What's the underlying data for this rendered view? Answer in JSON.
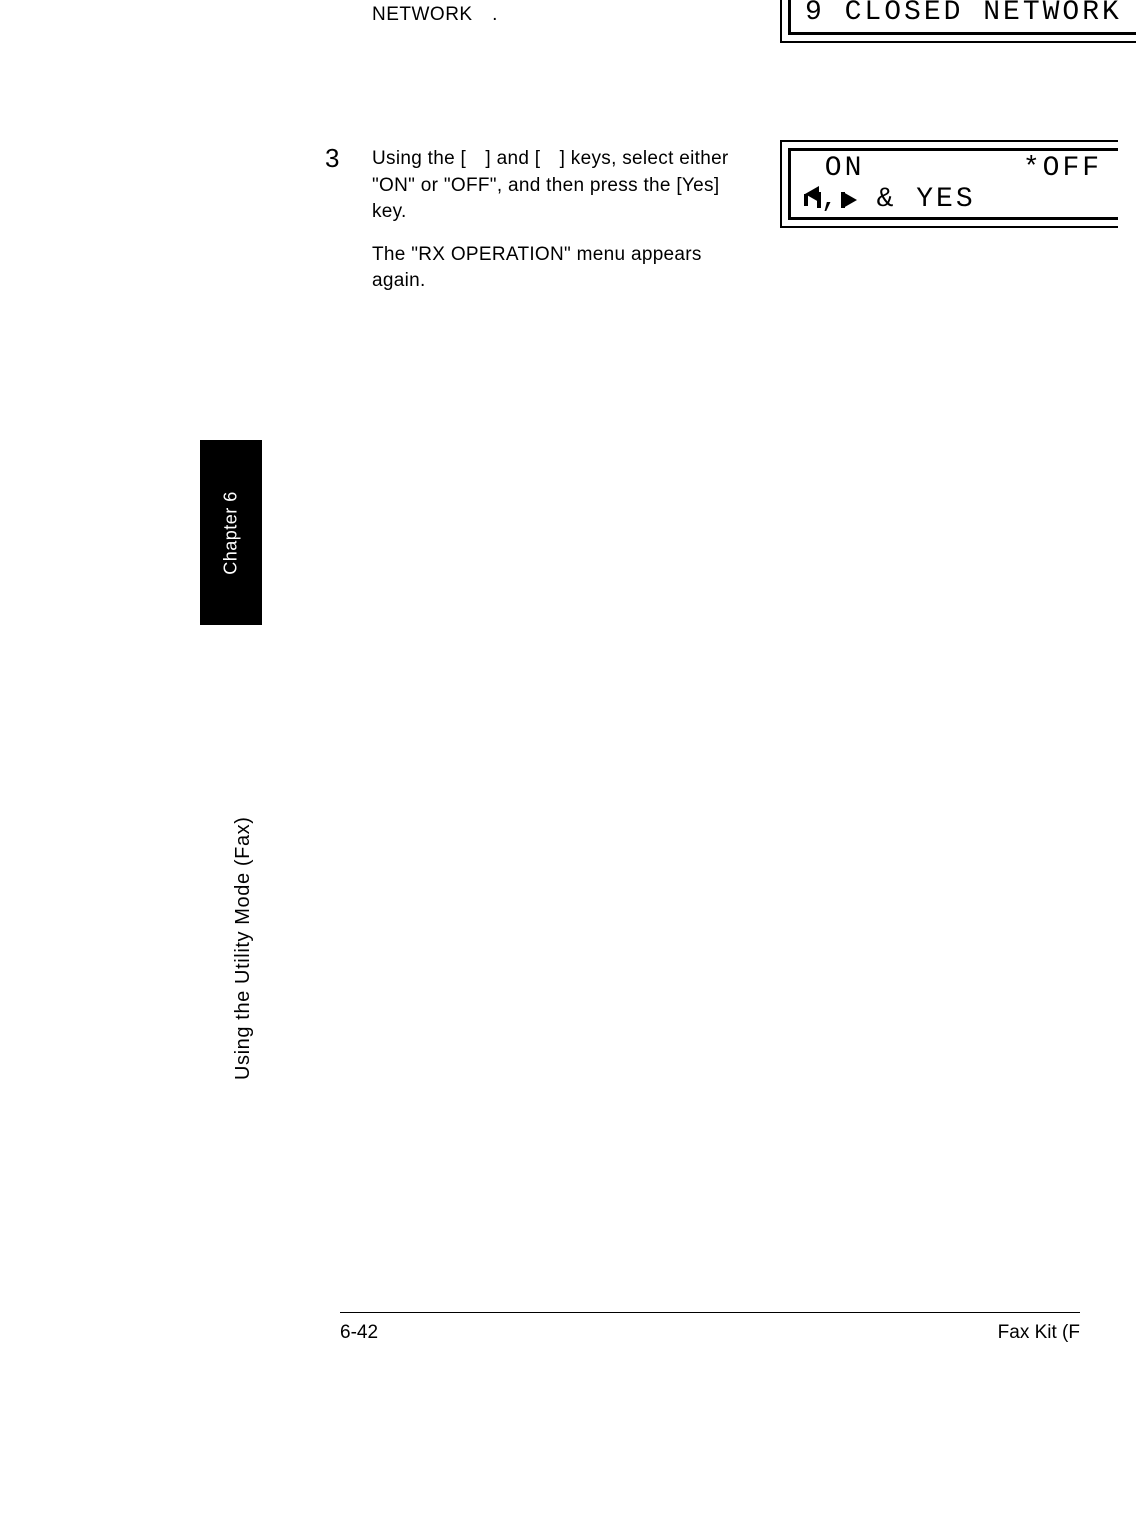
{
  "header_text": "NETWORK .",
  "lcd1_line1": "9 CLOSED NETWORK",
  "step3": {
    "number": "3",
    "line1": "Using the [ ] and [ ] keys, select either \"ON\" or \"OFF\", and then press the [Yes] key.",
    "line2": "The \"RX OPERATION\" menu appears again."
  },
  "lcd2": {
    "on_label": " ON",
    "off_label": "*OFF",
    "row2_suffix": " & YES"
  },
  "sidebar": {
    "chapter": "Chapter 6",
    "section": "Using the Utility Mode (Fax)"
  },
  "footer": {
    "page": "6-42",
    "doc": "Fax Kit (F"
  },
  "colors": {
    "text": "#000000",
    "background": "#ffffff"
  }
}
